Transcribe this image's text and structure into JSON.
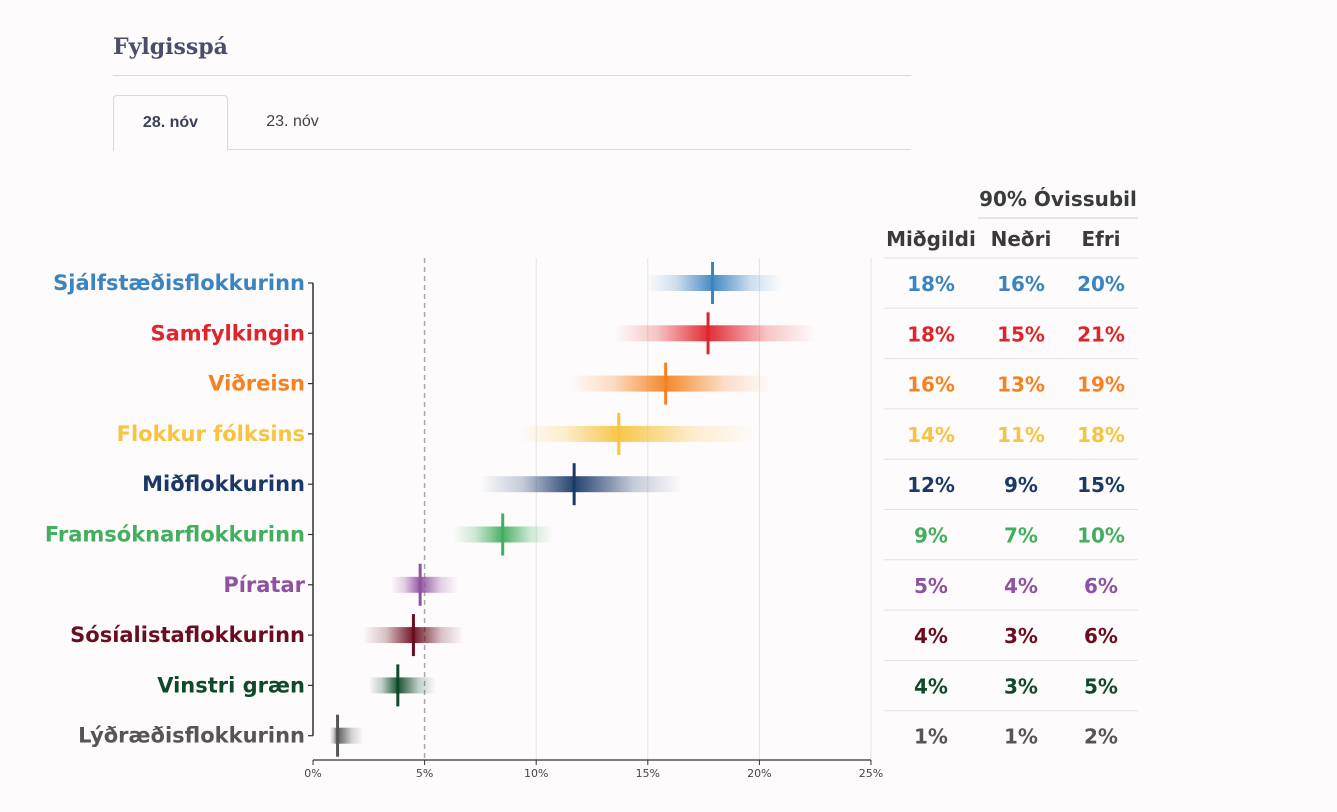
{
  "header": {
    "title": "Fylgisspá"
  },
  "tabs": [
    {
      "label": "28. nóv",
      "active": true
    },
    {
      "label": "23. nóv",
      "active": false
    }
  ],
  "table": {
    "group_header": "90% Óvissubil",
    "col_median": "Miðgildi",
    "col_lower": "Neðri",
    "col_upper": "Efri"
  },
  "chart_data": {
    "type": "interval",
    "xlim": [
      0,
      25
    ],
    "x_ticks": [
      0,
      5,
      10,
      15,
      20,
      25
    ],
    "x_tick_labels": [
      "0%",
      "5%",
      "10%",
      "15%",
      "20%",
      "25%"
    ],
    "reference_line": 5,
    "parties": [
      {
        "name": "Sjálfstæðisflokkurinn",
        "color": "#3b84c0",
        "median": 17.9,
        "lower": 16,
        "upper": 20,
        "median_label": "18%",
        "lower_label": "16%",
        "upper_label": "20%"
      },
      {
        "name": "Samfylkingin",
        "color": "#e0242b",
        "median": 17.7,
        "lower": 15,
        "upper": 21,
        "median_label": "18%",
        "lower_label": "15%",
        "upper_label": "21%"
      },
      {
        "name": "Viðreisn",
        "color": "#f5821f",
        "median": 15.8,
        "lower": 13,
        "upper": 19,
        "median_label": "16%",
        "lower_label": "13%",
        "upper_label": "19%"
      },
      {
        "name": "Flokkur fólksins",
        "color": "#f7c340",
        "median": 13.7,
        "lower": 11,
        "upper": 18,
        "median_label": "14%",
        "lower_label": "11%",
        "upper_label": "18%"
      },
      {
        "name": "Miðflokkurinn",
        "color": "#1a3968",
        "median": 11.7,
        "lower": 9,
        "upper": 15,
        "median_label": "12%",
        "lower_label": "9%",
        "upper_label": "15%"
      },
      {
        "name": "Framsóknarflokkurinn",
        "color": "#42ae5e",
        "median": 8.5,
        "lower": 7,
        "upper": 10,
        "median_label": "9%",
        "lower_label": "7%",
        "upper_label": "10%"
      },
      {
        "name": "Píratar",
        "color": "#8e52a1",
        "median": 4.8,
        "lower": 4,
        "upper": 6,
        "median_label": "5%",
        "lower_label": "4%",
        "upper_label": "6%"
      },
      {
        "name": "Sósíalistaflokkurinn",
        "color": "#6b0d1f",
        "median": 4.5,
        "lower": 3,
        "upper": 6,
        "median_label": "4%",
        "lower_label": "3%",
        "upper_label": "6%"
      },
      {
        "name": "Vinstri græn",
        "color": "#0e4a29",
        "median": 3.8,
        "lower": 3,
        "upper": 5,
        "median_label": "4%",
        "lower_label": "3%",
        "upper_label": "5%"
      },
      {
        "name": "Lýðræðisflokkurinn",
        "color": "#555555",
        "median": 1.1,
        "lower": 1,
        "upper": 2,
        "median_label": "1%",
        "lower_label": "1%",
        "upper_label": "2%"
      }
    ]
  }
}
